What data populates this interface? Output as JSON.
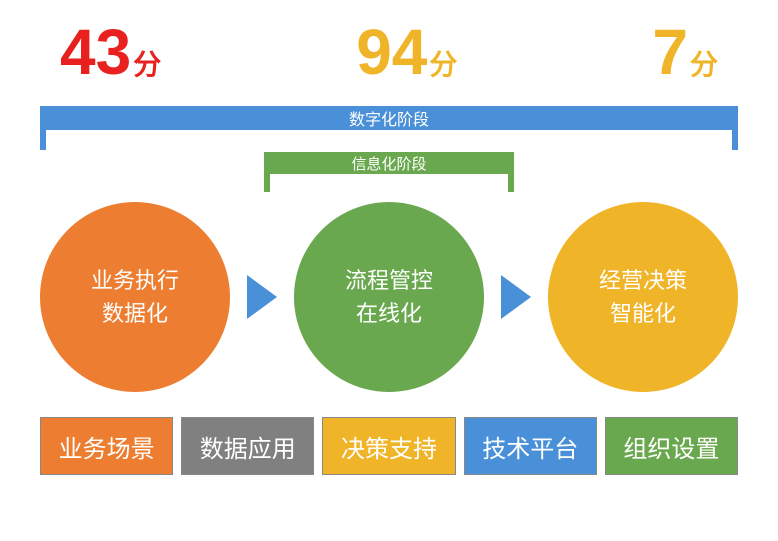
{
  "scores": [
    {
      "value": "43",
      "unit": "分",
      "color": "#e8211e"
    },
    {
      "value": "94",
      "unit": "分",
      "color": "#f0b429"
    },
    {
      "value": "7",
      "unit": "分",
      "color": "#f0b429"
    }
  ],
  "brackets": {
    "outer": {
      "label": "数字化阶段",
      "color": "#4a90d9"
    },
    "inner": {
      "label": "信息化阶段",
      "color": "#6aa84f"
    }
  },
  "circles": [
    {
      "line1": "业务执行",
      "line2": "数据化",
      "color": "#ed7d31"
    },
    {
      "line1": "流程管控",
      "line2": "在线化",
      "color": "#6aa84f"
    },
    {
      "line1": "经营决策",
      "line2": "智能化",
      "color": "#f0b429"
    }
  ],
  "arrow_color": "#4a90d9",
  "tiles": [
    {
      "label": "业务场景",
      "bg": "#ed7d31"
    },
    {
      "label": "数据应用",
      "bg": "#808080"
    },
    {
      "label": "决策支持",
      "bg": "#f0b429"
    },
    {
      "label": "技术平台",
      "bg": "#4a90d9"
    },
    {
      "label": "组织设置",
      "bg": "#6aa84f"
    }
  ]
}
